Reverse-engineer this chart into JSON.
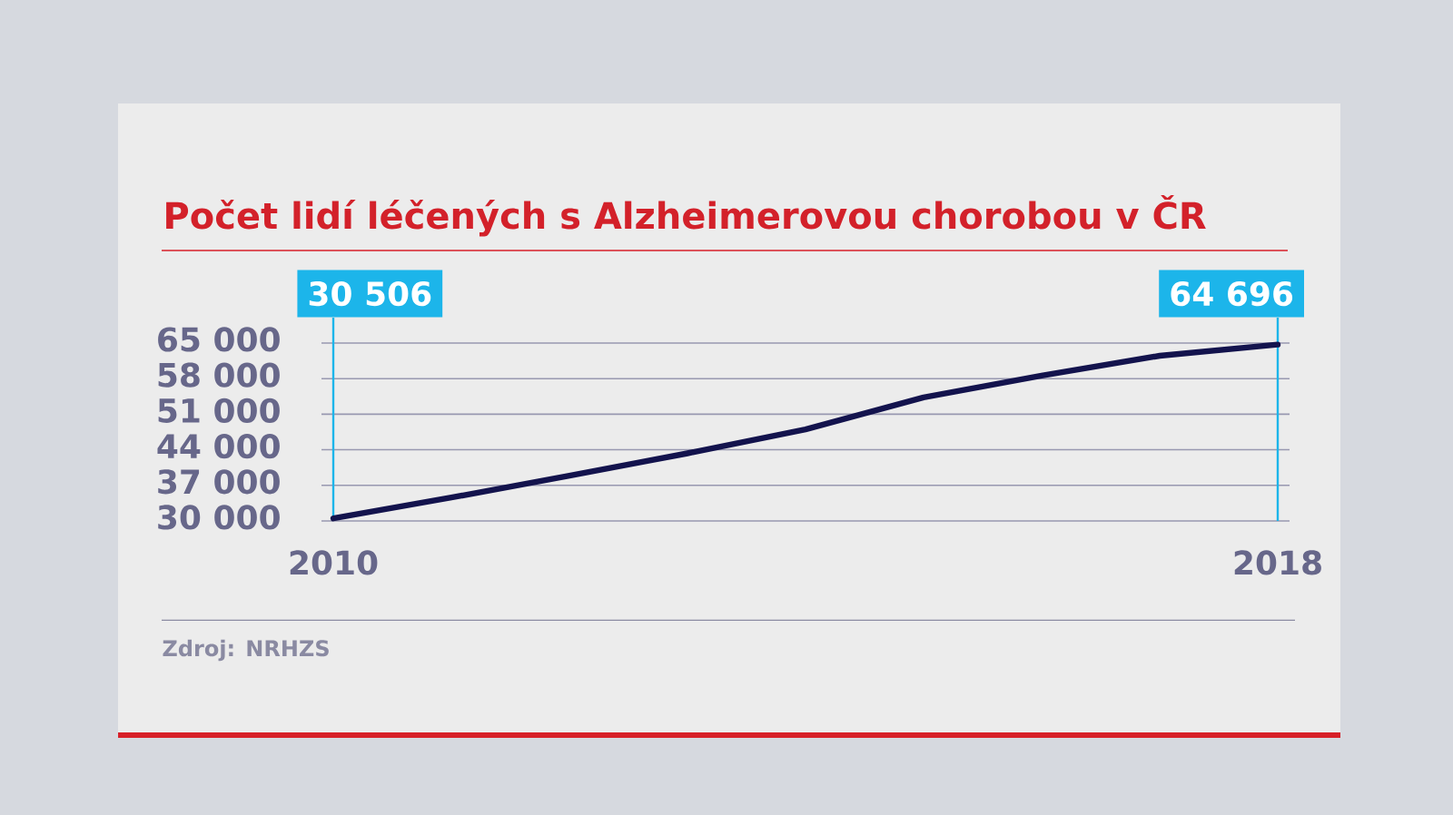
{
  "chart_data": {
    "type": "line",
    "title": "Počet lidí léčených s Alzheimerovou chorobou v ČR",
    "x": [
      2010,
      2011,
      2012,
      2013,
      2014,
      2015,
      2016,
      2017,
      2018
    ],
    "values": [
      30506,
      34600,
      38900,
      43300,
      48000,
      54300,
      58600,
      62500,
      64696
    ],
    "color": "#13134d",
    "line_style": "solid",
    "xlim": [
      2009.9,
      2018.1
    ],
    "xticks": [
      2010,
      2018
    ],
    "ylim": [
      30000,
      65000
    ],
    "yticks": [
      {
        "value": 30000,
        "label": "30 000"
      },
      {
        "value": 37000,
        "label": "37 000"
      },
      {
        "value": 44000,
        "label": "44 000"
      },
      {
        "value": 51000,
        "label": "51 000"
      },
      {
        "value": 58000,
        "label": "58 000"
      },
      {
        "value": 65000,
        "label": "65 000"
      }
    ],
    "grid": "y",
    "ref_lines": [
      {
        "axis": "x",
        "value": 2010,
        "color": "#1cb5ea"
      },
      {
        "axis": "x",
        "value": 2018,
        "color": "#1cb5ea"
      }
    ],
    "annotations": [
      "30 506",
      "64 696",
      "Zdroj: NRHZS"
    ]
  }
}
